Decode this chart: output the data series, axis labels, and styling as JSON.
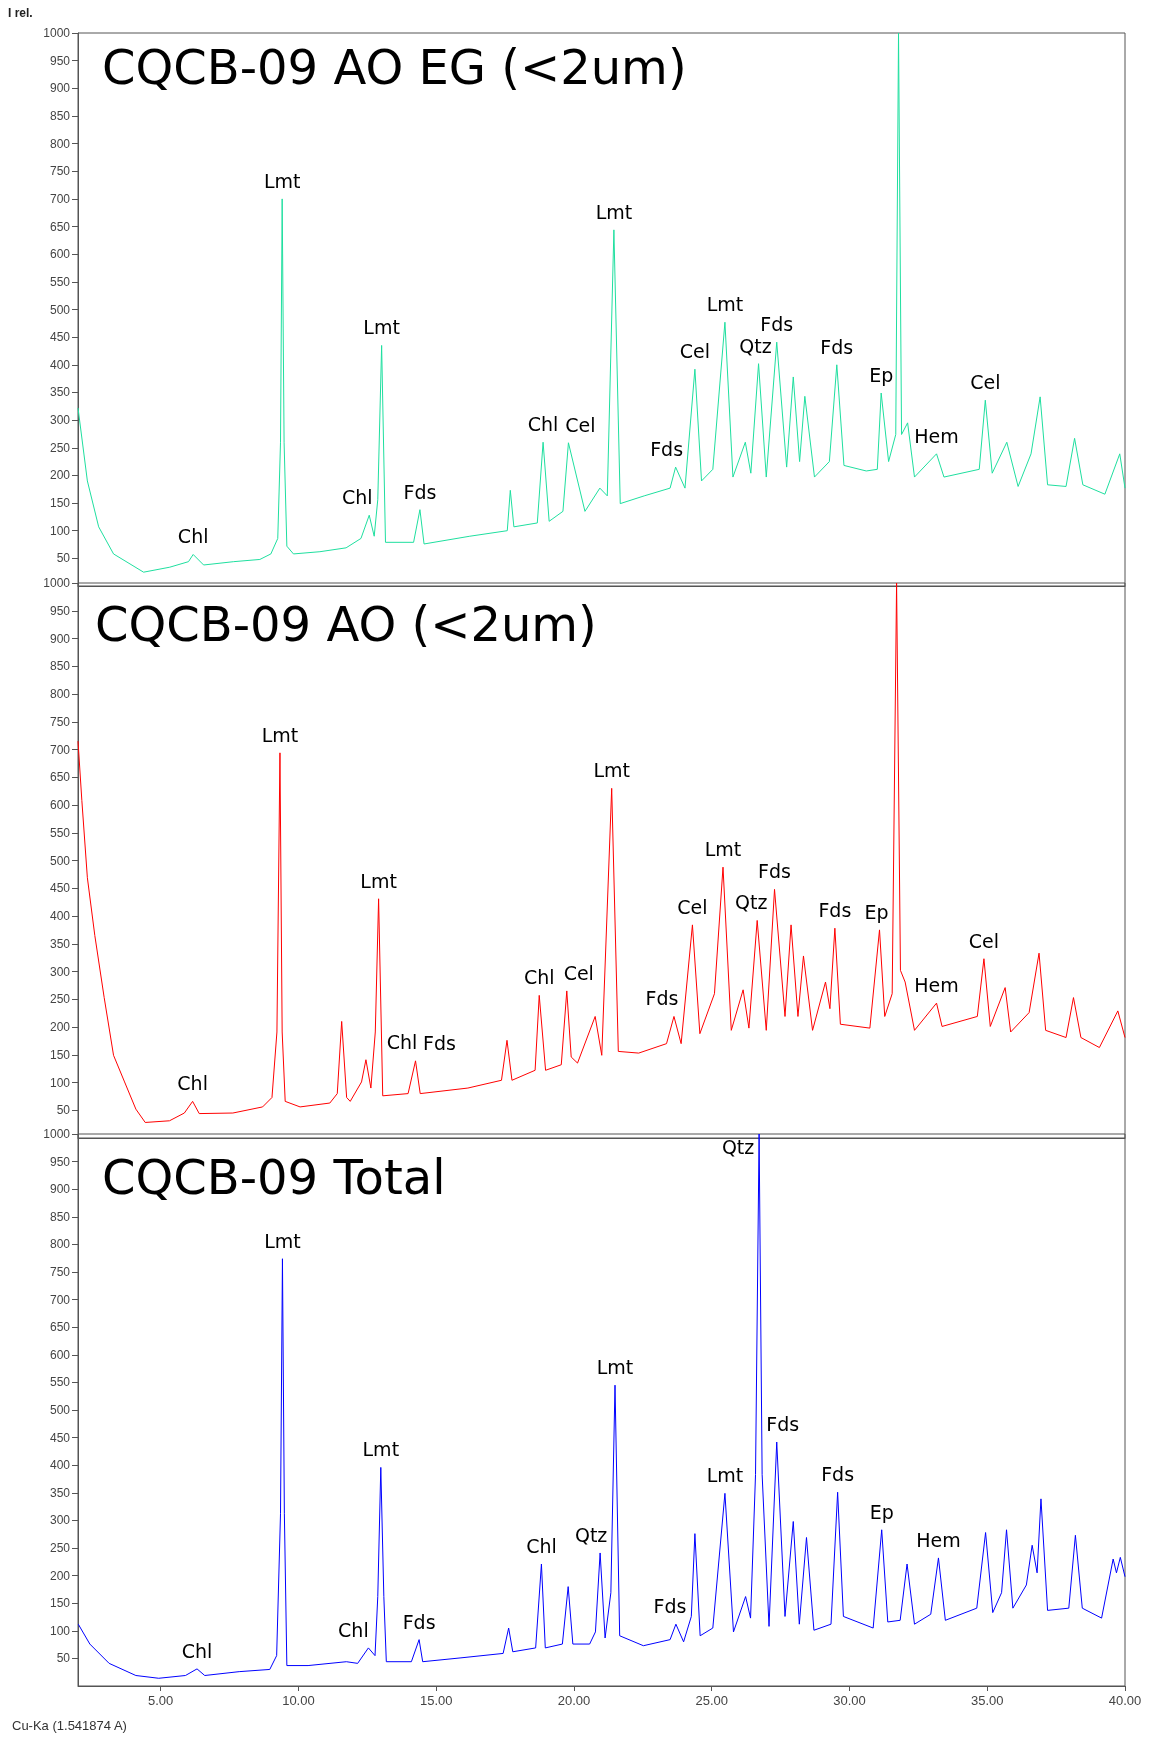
{
  "chart_data": [
    {
      "type": "line",
      "title": "CQCB-09 AO EG (<2um)",
      "ylabel": "I rel.",
      "xlim": [
        2,
        40
      ],
      "ylim": [
        0,
        1000
      ],
      "yticks": [
        50,
        100,
        150,
        200,
        250,
        300,
        350,
        400,
        450,
        500,
        550,
        600,
        650,
        700,
        750,
        800,
        850,
        900,
        950,
        1000
      ],
      "tick_labels": "y",
      "grid": false,
      "marker": "none",
      "line_style": "solid",
      "series": [
        {
          "color": "#1fdf9f",
          "x": [
            2.0,
            2.34,
            2.75,
            3.29,
            4.38,
            5.33,
            6.01,
            6.18,
            6.56,
            7.65,
            8.6,
            9.0,
            9.25,
            9.35,
            9.41,
            9.48,
            9.58,
            9.82,
            10.78,
            11.73,
            12.27,
            12.57,
            12.75,
            12.88,
            13.02,
            13.16,
            14.18,
            14.41,
            14.56,
            16.22,
            17.58,
            17.69,
            17.82,
            18.67,
            18.88,
            19.1,
            19.6,
            19.8,
            20.4,
            20.94,
            21.21,
            21.45,
            21.68,
            22.55,
            23.49,
            23.69,
            24.03,
            24.39,
            24.63,
            25.04,
            25.48,
            25.77,
            26.22,
            26.42,
            26.7,
            26.98,
            27.36,
            27.72,
            27.96,
            28.19,
            28.38,
            28.73,
            29.27,
            29.54,
            29.8,
            30.61,
            31.01,
            31.15,
            31.42,
            31.68,
            31.78,
            31.89,
            32.11,
            32.36,
            33.16,
            33.43,
            34.71,
            34.93,
            35.18,
            35.71,
            36.12,
            36.59,
            36.92,
            37.19,
            37.86,
            38.17,
            38.47,
            39.27,
            39.81,
            40.0
          ],
          "values": [
            322,
            190,
            107,
            58,
            25,
            34,
            44,
            57,
            38,
            44,
            48,
            58,
            86,
            260,
            700,
            260,
            72,
            58,
            62,
            69,
            86,
            128,
            90,
            156,
            435,
            79,
            79,
            138,
            76,
            90,
            100,
            173,
            107,
            114,
            260,
            117,
            135,
            259,
            135,
            177,
            163,
            644,
            149,
            163,
            177,
            215,
            177,
            392,
            190,
            211,
            477,
            197,
            260,
            204,
            402,
            197,
            441,
            215,
            378,
            225,
            343,
            197,
            225,
            400,
            218,
            208,
            211,
            349,
            225,
            274,
            1000,
            274,
            295,
            197,
            239,
            197,
            211,
            336,
            204,
            260,
            180,
            239,
            342,
            183,
            180,
            267,
            183,
            166,
            239,
            177
          ]
        }
      ],
      "annotations": [
        {
          "text": "Chl",
          "x": 6.18,
          "y": 57
        },
        {
          "text": "Lmt",
          "x": 9.41,
          "y": 700
        },
        {
          "text": "Chl",
          "x": 12.57,
          "y": 128
        },
        {
          "text": "Lmt",
          "x": 13.02,
          "y": 435
        },
        {
          "text": "Fds",
          "x": 14.41,
          "y": 138
        },
        {
          "text": "Chl",
          "x": 18.88,
          "y": 260
        },
        {
          "text": "Cel",
          "x": 19.8,
          "y": 259
        },
        {
          "text": "Lmt",
          "x": 21.45,
          "y": 644
        },
        {
          "text": "Fds",
          "x": 23.69,
          "y": 215
        },
        {
          "text": "Cel",
          "x": 24.39,
          "y": 392
        },
        {
          "text": "Lmt",
          "x": 25.48,
          "y": 477
        },
        {
          "text": "Qtz",
          "x": 26.7,
          "y": 402
        },
        {
          "text": "Fds",
          "x": 27.36,
          "y": 441
        },
        {
          "text": "Fds",
          "x": 29.54,
          "y": 400
        },
        {
          "text": "Ep",
          "x": 31.15,
          "y": 349
        },
        {
          "text": "Hem",
          "x": 33.16,
          "y": 239
        },
        {
          "text": "Cel",
          "x": 34.93,
          "y": 336
        }
      ]
    },
    {
      "type": "line",
      "title": "CQCB-09 AO (<2um)",
      "xlim": [
        2,
        40
      ],
      "ylim": [
        0,
        1000
      ],
      "yticks": [
        50,
        100,
        150,
        200,
        250,
        300,
        350,
        400,
        450,
        500,
        550,
        600,
        650,
        700,
        750,
        800,
        850,
        900,
        950,
        1000
      ],
      "tick_labels": "y",
      "grid": false,
      "marker": "none",
      "line_style": "solid",
      "series": [
        {
          "color": "#ff0000",
          "x": [
            2.0,
            2.14,
            2.34,
            2.61,
            2.95,
            3.29,
            3.69,
            4.1,
            4.44,
            5.32,
            5.86,
            6.16,
            6.4,
            7.62,
            8.7,
            9.04,
            9.22,
            9.33,
            9.41,
            9.52,
            10.06,
            11.14,
            11.41,
            11.57,
            11.75,
            11.88,
            12.29,
            12.45,
            12.63,
            12.79,
            12.91,
            13.06,
            13.98,
            14.25,
            14.42,
            16.15,
            17.37,
            17.57,
            17.75,
            18.59,
            18.74,
            18.97,
            19.54,
            19.74,
            19.9,
            20.13,
            20.77,
            21.01,
            21.37,
            21.61,
            22.35,
            23.36,
            23.63,
            23.89,
            24.3,
            24.57,
            25.1,
            25.41,
            25.71,
            26.14,
            26.35,
            26.65,
            26.98,
            27.28,
            27.66,
            27.88,
            28.13,
            28.33,
            28.66,
            29.13,
            29.29,
            29.47,
            29.67,
            30.74,
            31.09,
            31.28,
            31.55,
            31.71,
            31.85,
            32.02,
            32.36,
            33.16,
            33.36,
            34.64,
            34.88,
            35.11,
            35.65,
            35.85,
            36.52,
            36.88,
            37.12,
            37.86,
            38.13,
            38.4,
            39.07,
            39.74,
            40.0
          ],
          "values": [
            715,
            608,
            469,
            365,
            253,
            149,
            101,
            52,
            28,
            31,
            45,
            66,
            44,
            45,
            56,
            73,
            191,
            694,
            191,
            66,
            56,
            63,
            80,
            210,
            73,
            66,
            101,
            141,
            90,
            191,
            431,
            76,
            80,
            139,
            80,
            90,
            104,
            176,
            104,
            122,
            257,
            122,
            132,
            265,
            146,
            135,
            219,
            149,
            630,
            156,
            153,
            170,
            219,
            170,
            384,
            188,
            260,
            488,
            194,
            267,
            198,
            392,
            194,
            448,
            219,
            384,
            219,
            328,
            194,
            281,
            233,
            378,
            205,
            198,
            375,
            219,
            260,
            1000,
            302,
            281,
            194,
            243,
            201,
            219,
            323,
            201,
            271,
            191,
            226,
            333,
            194,
            181,
            253,
            181,
            163,
            229,
            181
          ]
        }
      ],
      "annotations": [
        {
          "text": "Chl",
          "x": 6.16,
          "y": 66
        },
        {
          "text": "Lmt",
          "x": 9.33,
          "y": 694
        },
        {
          "text": "Chl",
          "x": 12.45,
          "y": 141
        },
        {
          "text": "Lmt",
          "x": 12.91,
          "y": 431
        },
        {
          "text": "Fds",
          "x": 14.25,
          "y": 139
        },
        {
          "text": "Chl",
          "x": 18.74,
          "y": 257
        },
        {
          "text": "Cel",
          "x": 19.74,
          "y": 265
        },
        {
          "text": "Lmt",
          "x": 21.37,
          "y": 630
        },
        {
          "text": "Fds",
          "x": 23.63,
          "y": 219
        },
        {
          "text": "Cel",
          "x": 24.3,
          "y": 384
        },
        {
          "text": "Lmt",
          "x": 25.41,
          "y": 488
        },
        {
          "text": "Qtz",
          "x": 26.65,
          "y": 392
        },
        {
          "text": "Fds",
          "x": 27.28,
          "y": 448
        },
        {
          "text": "Fds",
          "x": 29.47,
          "y": 378
        },
        {
          "text": "Ep",
          "x": 31.09,
          "y": 375
        },
        {
          "text": "Hem",
          "x": 33.16,
          "y": 243
        },
        {
          "text": "Cel",
          "x": 34.88,
          "y": 323
        }
      ]
    },
    {
      "type": "line",
      "title": "CQCB-09 Total",
      "xlabel": "Cu-Ka (1.541874 A)",
      "xlim": [
        2,
        40
      ],
      "xticks": [
        {
          "value": 5,
          "label": "5.00"
        },
        {
          "value": 10,
          "label": "10.00"
        },
        {
          "value": 15,
          "label": "15.00"
        },
        {
          "value": 20,
          "label": "20.00"
        },
        {
          "value": 25,
          "label": "25.00"
        },
        {
          "value": 30,
          "label": "30.00"
        },
        {
          "value": 35,
          "label": "35.00"
        },
        {
          "value": 40,
          "label": "40.00"
        }
      ],
      "ylim": [
        0,
        1000
      ],
      "yticks": [
        50,
        100,
        150,
        200,
        250,
        300,
        350,
        400,
        450,
        500,
        550,
        600,
        650,
        700,
        750,
        800,
        850,
        900,
        950,
        1000
      ],
      "grid": false,
      "marker": "none",
      "line_style": "solid",
      "series": [
        {
          "color": "#0000ff",
          "x": [
            2.01,
            2.43,
            3.13,
            4.1,
            4.93,
            5.9,
            6.32,
            6.6,
            7.85,
            8.96,
            9.21,
            9.35,
            9.42,
            9.49,
            9.58,
            10.35,
            11.74,
            12.15,
            12.54,
            12.78,
            12.88,
            12.99,
            13.1,
            13.19,
            14.1,
            14.38,
            14.51,
            15.9,
            17.43,
            17.63,
            17.78,
            18.61,
            18.82,
            18.96,
            19.58,
            19.79,
            19.96,
            20.57,
            20.78,
            20.95,
            21.13,
            21.34,
            21.49,
            21.66,
            22.52,
            23.49,
            23.7,
            23.98,
            24.26,
            24.39,
            24.58,
            25.04,
            25.48,
            25.79,
            26.23,
            26.41,
            26.59,
            26.72,
            26.83,
            27.08,
            27.36,
            27.66,
            27.96,
            28.18,
            28.44,
            28.71,
            29.33,
            29.57,
            29.78,
            30.86,
            31.17,
            31.39,
            31.84,
            32.09,
            32.36,
            32.95,
            33.23,
            33.48,
            34.62,
            34.94,
            35.2,
            35.52,
            35.7,
            35.93,
            36.42,
            36.63,
            36.81,
            36.95,
            37.19,
            37.96,
            38.2,
            38.45,
            39.15,
            39.57,
            39.69,
            39.83,
            40.0
          ],
          "values": [
            112,
            76,
            41,
            19,
            14,
            19,
            31,
            19,
            26,
            30,
            55,
            312,
            774,
            312,
            37,
            37,
            44,
            41,
            69,
            55,
            162,
            396,
            162,
            44,
            44,
            84,
            44,
            51,
            59,
            105,
            62,
            69,
            221,
            69,
            76,
            180,
            76,
            76,
            98,
            241,
            87,
            169,
            545,
            91,
            73,
            84,
            112,
            80,
            126,
            276,
            91,
            105,
            349,
            98,
            162,
            123,
            383,
            1000,
            383,
            108,
            442,
            126,
            298,
            112,
            269,
            101,
            112,
            351,
            126,
            105,
            283,
            116,
            119,
            221,
            112,
            130,
            232,
            119,
            141,
            278,
            133,
            169,
            283,
            141,
            183,
            255,
            205,
            339,
            137,
            141,
            273,
            141,
            123,
            230,
            205,
            233,
            198
          ]
        }
      ],
      "annotations": [
        {
          "text": "Chl",
          "x": 6.32,
          "y": 31
        },
        {
          "text": "Lmt",
          "x": 9.42,
          "y": 774
        },
        {
          "text": "Chl",
          "x": 12.54,
          "y": 69
        },
        {
          "text": "Lmt",
          "x": 12.99,
          "y": 396
        },
        {
          "text": "Fds",
          "x": 14.38,
          "y": 84
        },
        {
          "text": "Chl",
          "x": 18.82,
          "y": 221
        },
        {
          "text": "Qtz",
          "x": 20.95,
          "y": 241
        },
        {
          "text": "Lmt",
          "x": 21.49,
          "y": 545
        },
        {
          "text": "Fds",
          "x": 23.7,
          "y": 112
        },
        {
          "text": "Lmt",
          "x": 25.48,
          "y": 349
        },
        {
          "text": "Qtz",
          "x": 26.72,
          "y": 1000
        },
        {
          "text": "Fds",
          "x": 27.36,
          "y": 442
        },
        {
          "text": "Fds",
          "x": 29.57,
          "y": 351
        },
        {
          "text": "Ep",
          "x": 31.17,
          "y": 283
        },
        {
          "text": "Hem",
          "x": 33.23,
          "y": 232
        }
      ]
    }
  ]
}
